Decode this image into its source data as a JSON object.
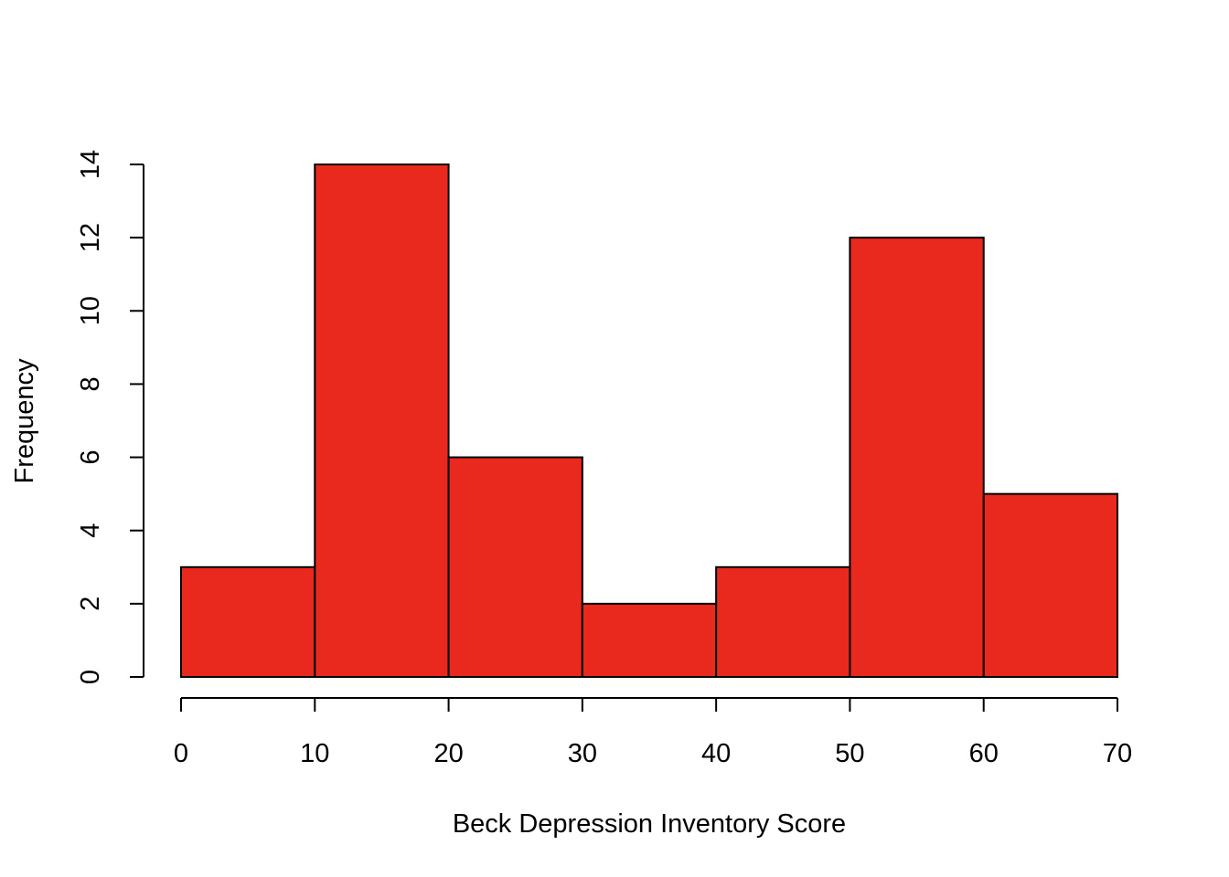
{
  "chart_data": {
    "type": "bar",
    "title": "",
    "xlabel": "Beck Depression Inventory Score",
    "ylabel": "Frequency",
    "bins": [
      {
        "from": 0,
        "to": 10,
        "value": 3
      },
      {
        "from": 10,
        "to": 20,
        "value": 14
      },
      {
        "from": 20,
        "to": 30,
        "value": 6
      },
      {
        "from": 30,
        "to": 40,
        "value": 2
      },
      {
        "from": 40,
        "to": 50,
        "value": 3
      },
      {
        "from": 50,
        "to": 60,
        "value": 12
      },
      {
        "from": 60,
        "to": 70,
        "value": 5
      }
    ],
    "xlim": [
      0,
      70
    ],
    "ylim": [
      0,
      14
    ],
    "xticks": [
      "0",
      "10",
      "20",
      "30",
      "40",
      "50",
      "60",
      "70"
    ],
    "yticks": [
      "0",
      "2",
      "4",
      "6",
      "8",
      "10",
      "12",
      "14"
    ],
    "bar_color": "#E9291E",
    "grid": false,
    "legend": "none"
  }
}
